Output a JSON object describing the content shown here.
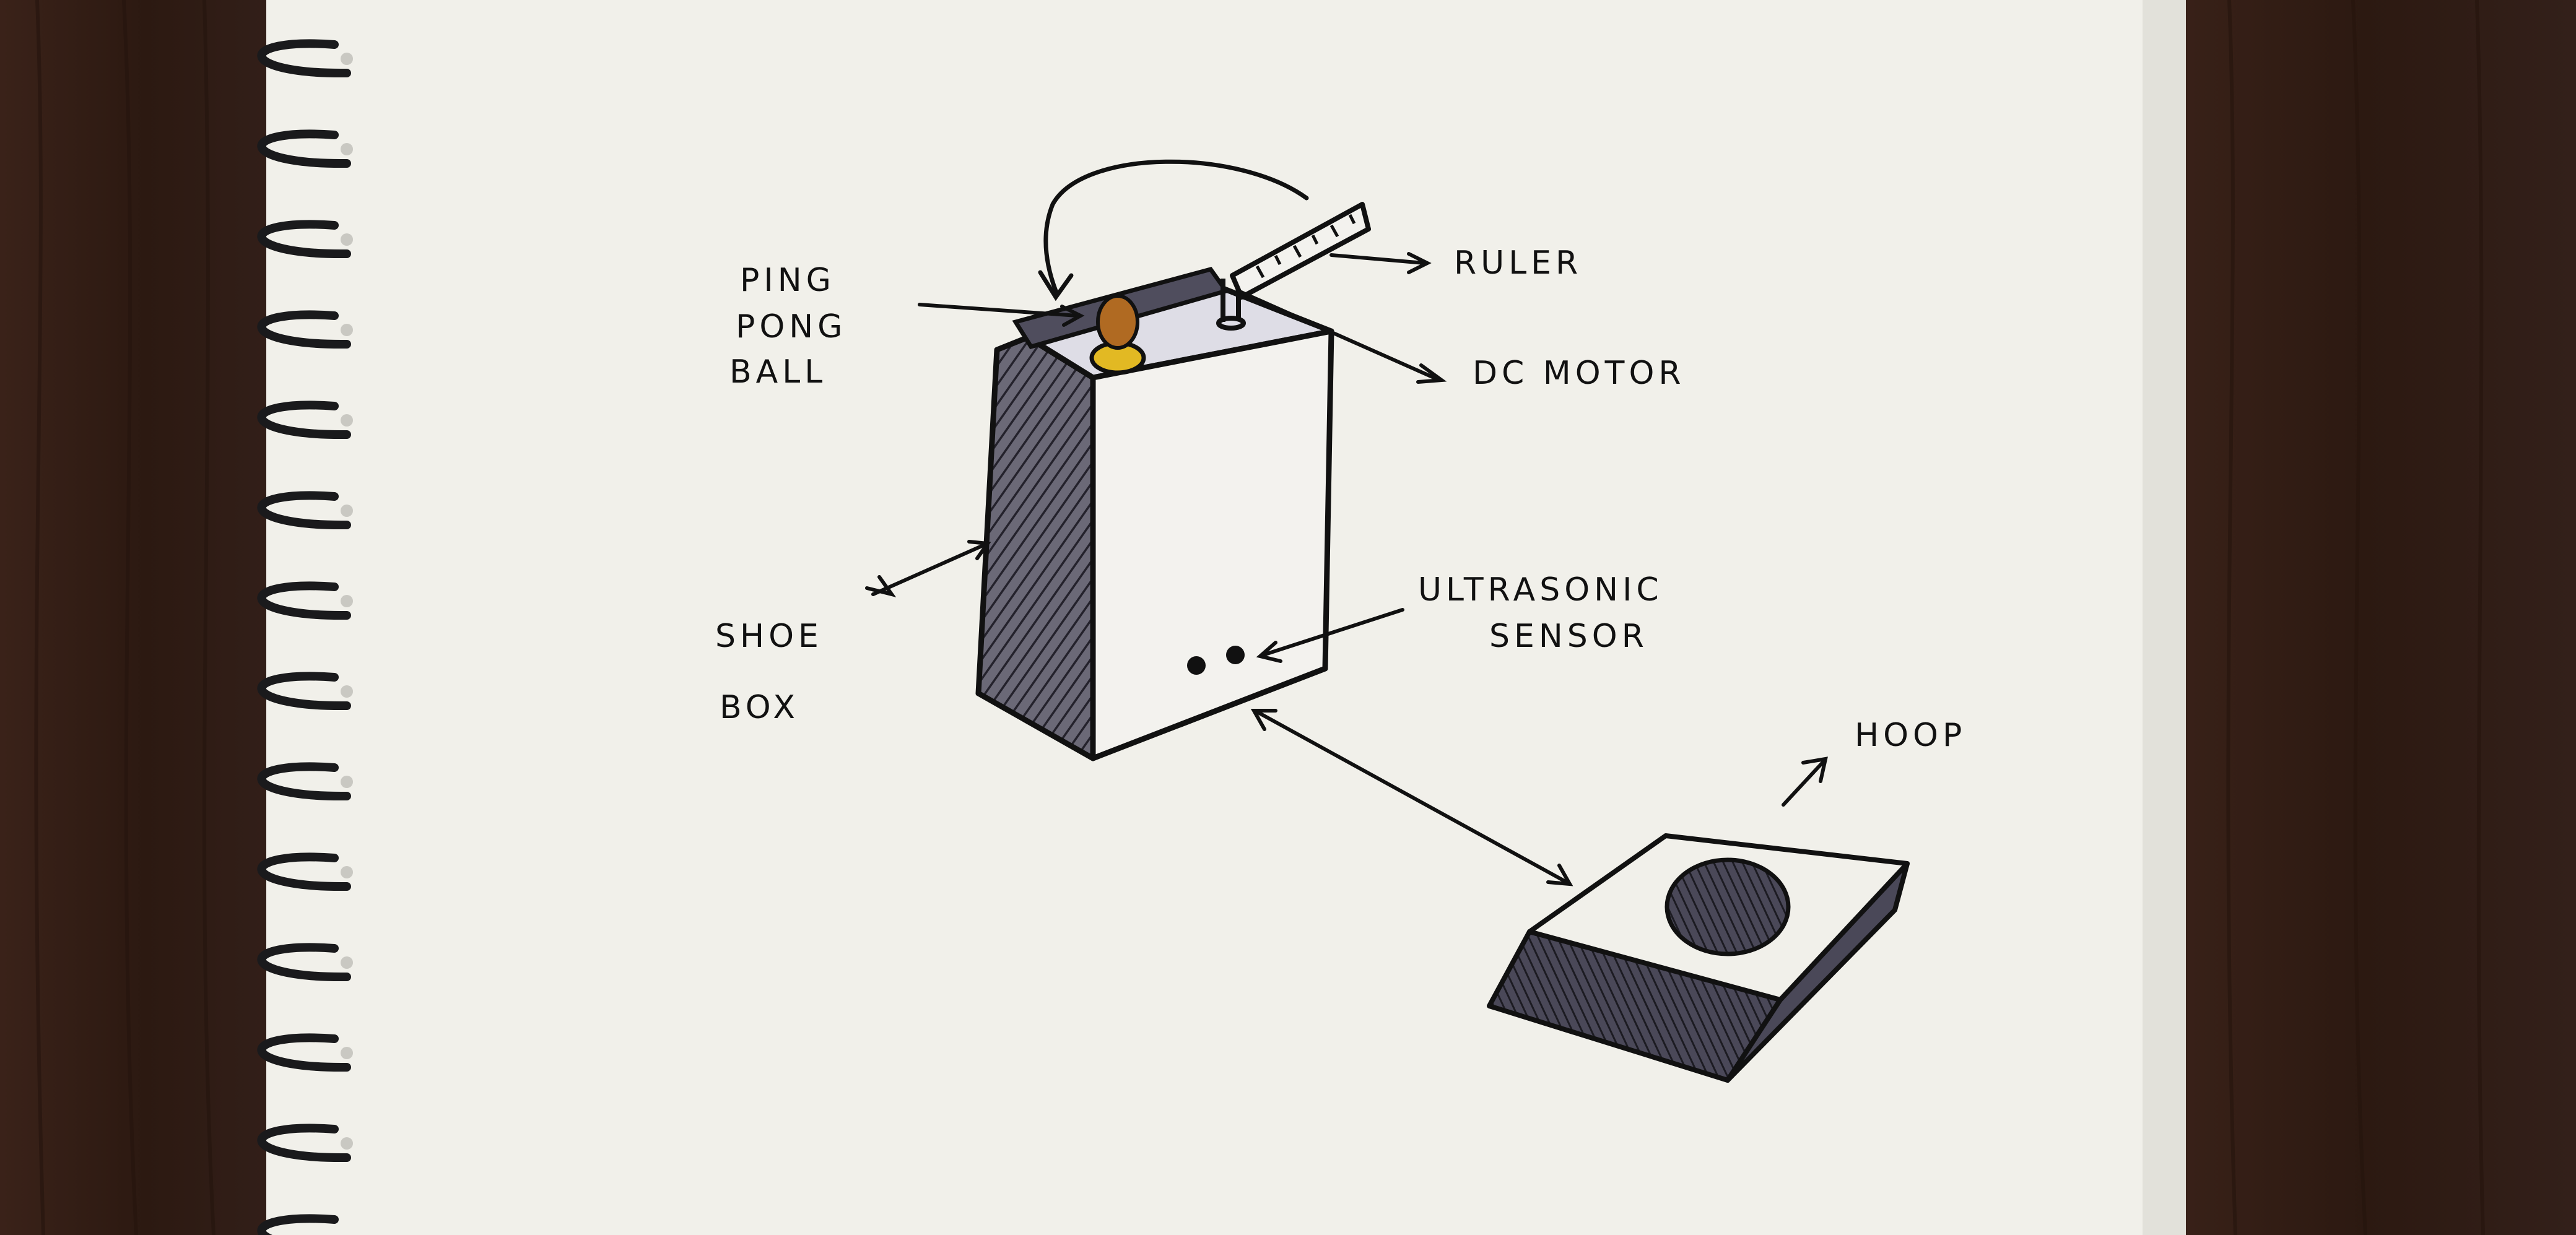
{
  "labels": {
    "ping": "PING",
    "pong": "PONG",
    "ball": "BALL",
    "ruler": "RULER",
    "dc_motor": "DC MOTOR",
    "ultrasonic": "ULTRASONIC",
    "sensor": "SENSOR",
    "shoe": "SHOE",
    "box": "BOX",
    "hoop": "HOOP"
  },
  "colors": {
    "desk": "#2e1a12",
    "paper": "#f1f0ea",
    "ink": "#111111",
    "shade": "#5a5868",
    "ball": "#b06a22",
    "ball_base": "#e2b923",
    "spiral": "#1a1a1c"
  }
}
